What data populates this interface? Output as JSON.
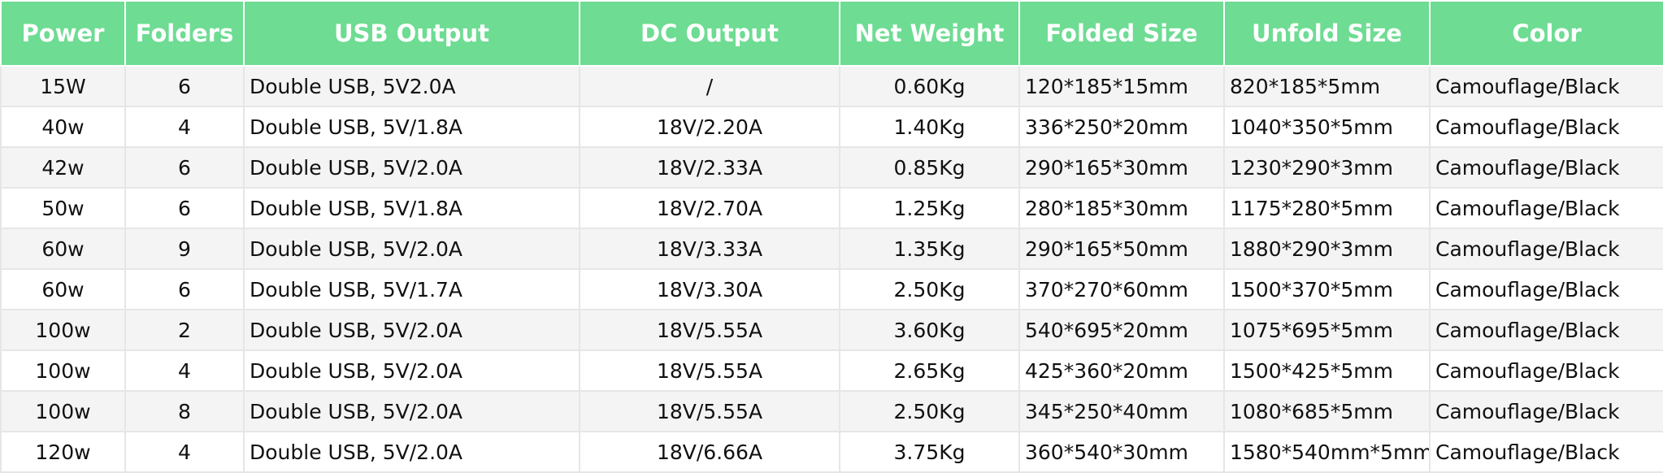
{
  "table": {
    "header": [
      "Power",
      "Folders",
      "USB Output",
      "DC Output",
      "Net Weight",
      "Folded Size",
      "Unfold Size",
      "Color"
    ],
    "rows": [
      [
        "15W",
        "6",
        "Double USB, 5V2.0A",
        "/",
        "0.60Kg",
        "120*185*15mm",
        "820*185*5mm",
        "Camouflage/Black"
      ],
      [
        "40w",
        "4",
        "Double USB, 5V/1.8A",
        "18V/2.20A",
        "1.40Kg",
        "336*250*20mm",
        "1040*350*5mm",
        "Camouflage/Black"
      ],
      [
        "42w",
        "6",
        "Double USB, 5V/2.0A",
        "18V/2.33A",
        "0.85Kg",
        "290*165*30mm",
        "1230*290*3mm",
        "Camouflage/Black"
      ],
      [
        "50w",
        "6",
        "Double USB, 5V/1.8A",
        "18V/2.70A",
        "1.25Kg",
        "280*185*30mm",
        "1175*280*5mm",
        "Camouflage/Black"
      ],
      [
        "60w",
        "9",
        "Double USB, 5V/2.0A",
        "18V/3.33A",
        "1.35Kg",
        "290*165*50mm",
        "1880*290*3mm",
        "Camouflage/Black"
      ],
      [
        "60w",
        "6",
        "Double USB, 5V/1.7A",
        "18V/3.30A",
        "2.50Kg",
        "370*270*60mm",
        "1500*370*5mm",
        "Camouflage/Black"
      ],
      [
        "100w",
        "2",
        "Double USB, 5V/2.0A",
        "18V/5.55A",
        "3.60Kg",
        "540*695*20mm",
        "1075*695*5mm",
        "Camouflage/Black"
      ],
      [
        "100w",
        "4",
        "Double USB, 5V/2.0A",
        "18V/5.55A",
        "2.65Kg",
        "425*360*20mm",
        "1500*425*5mm",
        "Camouflage/Black"
      ],
      [
        "100w",
        "8",
        "Double USB, 5V/2.0A",
        "18V/5.55A",
        "2.50Kg",
        "345*250*40mm",
        "1080*685*5mm",
        "Camouflage/Black"
      ],
      [
        "120w",
        "4",
        "Double USB, 5V/2.0A",
        "18V/6.66A",
        "3.75Kg",
        "360*540*30mm",
        "1580*540mm*5mm",
        "Camouflage/Black"
      ]
    ]
  }
}
